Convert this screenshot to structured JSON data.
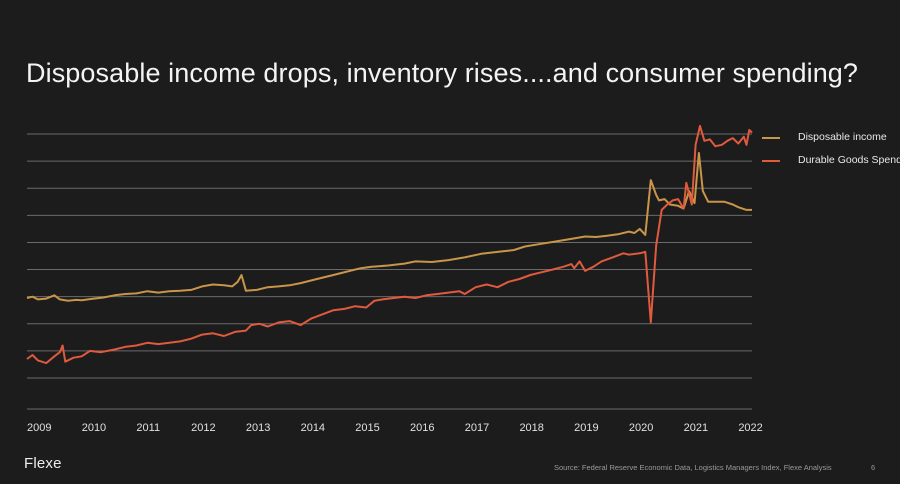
{
  "slide": {
    "title": "Disposable income drops, inventory rises....and consumer spending?",
    "logo": "Flexe",
    "source": "Source: Federal Reserve Economic Data, Logistics Managers Index, Flexe Analysis",
    "page_number": "6"
  },
  "colors": {
    "background": "#1c1c1c",
    "grid": "#6a6a6a",
    "disposable_income": "#c99548",
    "durable_goods": "#e05a3e"
  },
  "chart_data": {
    "type": "line",
    "title": "Disposable income drops, inventory rises....and consumer spending?",
    "xlabel": "",
    "ylabel": "",
    "x_ticks": [
      "2009",
      "2010",
      "2011",
      "2012",
      "2013",
      "2014",
      "2015",
      "2016",
      "2017",
      "2018",
      "2019",
      "2020",
      "2021",
      "2022"
    ],
    "xlim": [
      2009.0,
      2022.25
    ],
    "ylim": [
      0,
      9
    ],
    "y_scale_note": "y axis unlabeled; values in gridline units (0 = bottom gridline, 9 = top gridline)",
    "grid": true,
    "legend_position": "right",
    "series": [
      {
        "name": "Disposable income",
        "color": "#c99548",
        "points": [
          [
            2009.0,
            2.95
          ],
          [
            2009.1,
            3.0
          ],
          [
            2009.2,
            2.9
          ],
          [
            2009.35,
            2.93
          ],
          [
            2009.5,
            3.05
          ],
          [
            2009.6,
            2.9
          ],
          [
            2009.75,
            2.85
          ],
          [
            2009.9,
            2.88
          ],
          [
            2010.0,
            2.87
          ],
          [
            2010.2,
            2.92
          ],
          [
            2010.4,
            2.97
          ],
          [
            2010.6,
            3.05
          ],
          [
            2010.8,
            3.1
          ],
          [
            2011.0,
            3.12
          ],
          [
            2011.2,
            3.2
          ],
          [
            2011.4,
            3.15
          ],
          [
            2011.6,
            3.2
          ],
          [
            2011.8,
            3.22
          ],
          [
            2012.0,
            3.25
          ],
          [
            2012.2,
            3.38
          ],
          [
            2012.4,
            3.45
          ],
          [
            2012.6,
            3.42
          ],
          [
            2012.75,
            3.38
          ],
          [
            2012.85,
            3.55
          ],
          [
            2012.92,
            3.8
          ],
          [
            2013.0,
            3.22
          ],
          [
            2013.2,
            3.25
          ],
          [
            2013.4,
            3.35
          ],
          [
            2013.6,
            3.38
          ],
          [
            2013.8,
            3.42
          ],
          [
            2014.0,
            3.5
          ],
          [
            2014.3,
            3.65
          ],
          [
            2014.6,
            3.8
          ],
          [
            2014.9,
            3.95
          ],
          [
            2015.1,
            4.05
          ],
          [
            2015.3,
            4.1
          ],
          [
            2015.6,
            4.15
          ],
          [
            2015.9,
            4.22
          ],
          [
            2016.1,
            4.3
          ],
          [
            2016.4,
            4.28
          ],
          [
            2016.7,
            4.35
          ],
          [
            2017.0,
            4.45
          ],
          [
            2017.3,
            4.58
          ],
          [
            2017.6,
            4.65
          ],
          [
            2017.9,
            4.72
          ],
          [
            2018.1,
            4.85
          ],
          [
            2018.4,
            4.95
          ],
          [
            2018.7,
            5.05
          ],
          [
            2019.0,
            5.15
          ],
          [
            2019.2,
            5.22
          ],
          [
            2019.4,
            5.2
          ],
          [
            2019.6,
            5.25
          ],
          [
            2019.8,
            5.3
          ],
          [
            2020.0,
            5.4
          ],
          [
            2020.1,
            5.35
          ],
          [
            2020.2,
            5.5
          ],
          [
            2020.3,
            5.28
          ],
          [
            2020.4,
            7.3
          ],
          [
            2020.5,
            6.75
          ],
          [
            2020.55,
            6.55
          ],
          [
            2020.65,
            6.6
          ],
          [
            2020.75,
            6.4
          ],
          [
            2020.9,
            6.35
          ],
          [
            2021.0,
            6.25
          ],
          [
            2021.1,
            6.9
          ],
          [
            2021.2,
            6.45
          ],
          [
            2021.28,
            8.3
          ],
          [
            2021.35,
            6.9
          ],
          [
            2021.45,
            6.5
          ],
          [
            2021.6,
            6.5
          ],
          [
            2021.75,
            6.5
          ],
          [
            2021.9,
            6.4
          ],
          [
            2022.0,
            6.3
          ],
          [
            2022.15,
            6.2
          ],
          [
            2022.25,
            6.2
          ]
        ]
      },
      {
        "name": "Durable Goods Spend",
        "color": "#e05a3e",
        "points": [
          [
            2009.0,
            0.7
          ],
          [
            2009.1,
            0.85
          ],
          [
            2009.2,
            0.65
          ],
          [
            2009.35,
            0.55
          ],
          [
            2009.5,
            0.8
          ],
          [
            2009.6,
            0.95
          ],
          [
            2009.65,
            1.2
          ],
          [
            2009.7,
            0.6
          ],
          [
            2009.85,
            0.75
          ],
          [
            2010.0,
            0.8
          ],
          [
            2010.15,
            1.0
          ],
          [
            2010.35,
            0.95
          ],
          [
            2010.6,
            1.05
          ],
          [
            2010.8,
            1.15
          ],
          [
            2011.0,
            1.2
          ],
          [
            2011.2,
            1.3
          ],
          [
            2011.4,
            1.25
          ],
          [
            2011.6,
            1.3
          ],
          [
            2011.8,
            1.35
          ],
          [
            2012.0,
            1.45
          ],
          [
            2012.2,
            1.6
          ],
          [
            2012.4,
            1.65
          ],
          [
            2012.6,
            1.55
          ],
          [
            2012.8,
            1.7
          ],
          [
            2013.0,
            1.75
          ],
          [
            2013.1,
            1.95
          ],
          [
            2013.25,
            2.0
          ],
          [
            2013.4,
            1.9
          ],
          [
            2013.6,
            2.05
          ],
          [
            2013.8,
            2.1
          ],
          [
            2014.0,
            1.95
          ],
          [
            2014.2,
            2.2
          ],
          [
            2014.4,
            2.35
          ],
          [
            2014.6,
            2.5
          ],
          [
            2014.8,
            2.55
          ],
          [
            2015.0,
            2.65
          ],
          [
            2015.2,
            2.6
          ],
          [
            2015.35,
            2.85
          ],
          [
            2015.5,
            2.9
          ],
          [
            2015.7,
            2.95
          ],
          [
            2015.9,
            3.0
          ],
          [
            2016.1,
            2.95
          ],
          [
            2016.3,
            3.05
          ],
          [
            2016.5,
            3.1
          ],
          [
            2016.7,
            3.15
          ],
          [
            2016.9,
            3.2
          ],
          [
            2017.0,
            3.1
          ],
          [
            2017.2,
            3.35
          ],
          [
            2017.4,
            3.45
          ],
          [
            2017.6,
            3.35
          ],
          [
            2017.8,
            3.55
          ],
          [
            2018.0,
            3.65
          ],
          [
            2018.2,
            3.8
          ],
          [
            2018.4,
            3.9
          ],
          [
            2018.6,
            4.0
          ],
          [
            2018.8,
            4.1
          ],
          [
            2018.95,
            4.2
          ],
          [
            2019.0,
            4.05
          ],
          [
            2019.1,
            4.3
          ],
          [
            2019.2,
            3.95
          ],
          [
            2019.35,
            4.1
          ],
          [
            2019.5,
            4.3
          ],
          [
            2019.7,
            4.45
          ],
          [
            2019.9,
            4.6
          ],
          [
            2020.0,
            4.55
          ],
          [
            2020.2,
            4.6
          ],
          [
            2020.3,
            4.65
          ],
          [
            2020.4,
            2.05
          ],
          [
            2020.5,
            4.9
          ],
          [
            2020.6,
            6.2
          ],
          [
            2020.7,
            6.4
          ],
          [
            2020.8,
            6.55
          ],
          [
            2020.9,
            6.6
          ],
          [
            2021.0,
            6.25
          ],
          [
            2021.05,
            7.2
          ],
          [
            2021.15,
            6.4
          ],
          [
            2021.22,
            8.6
          ],
          [
            2021.3,
            9.3
          ],
          [
            2021.38,
            8.75
          ],
          [
            2021.48,
            8.8
          ],
          [
            2021.58,
            8.55
          ],
          [
            2021.7,
            8.6
          ],
          [
            2021.8,
            8.75
          ],
          [
            2021.9,
            8.85
          ],
          [
            2022.0,
            8.65
          ],
          [
            2022.1,
            8.9
          ],
          [
            2022.15,
            8.6
          ],
          [
            2022.2,
            9.15
          ],
          [
            2022.25,
            9.05
          ]
        ]
      }
    ]
  }
}
